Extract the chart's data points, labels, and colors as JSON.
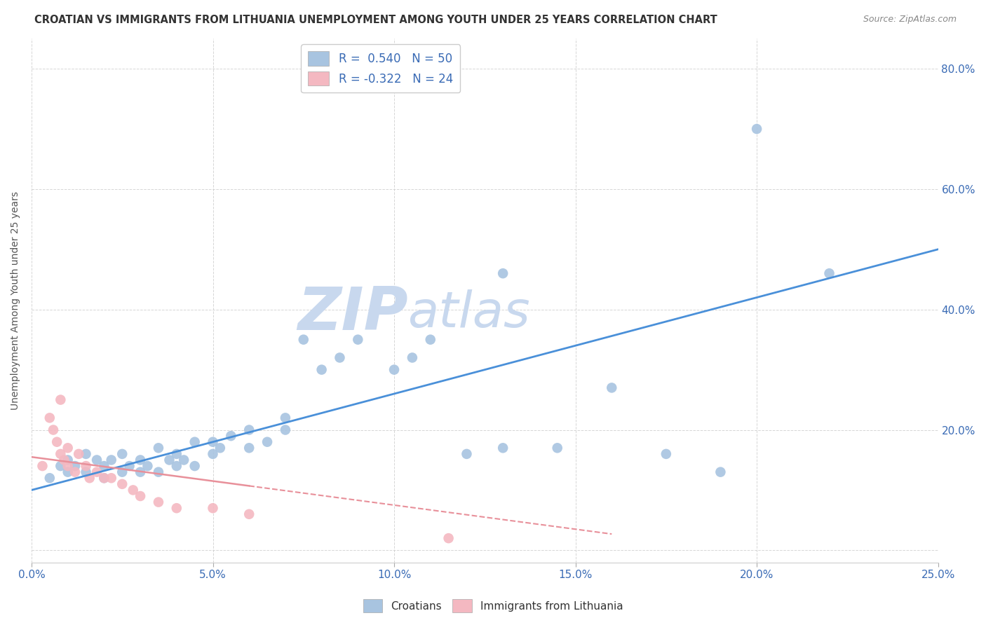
{
  "title": "CROATIAN VS IMMIGRANTS FROM LITHUANIA UNEMPLOYMENT AMONG YOUTH UNDER 25 YEARS CORRELATION CHART",
  "source": "Source: ZipAtlas.com",
  "xlabel": "",
  "ylabel": "Unemployment Among Youth under 25 years",
  "xlim": [
    0.0,
    0.25
  ],
  "ylim": [
    -0.02,
    0.85
  ],
  "xticks": [
    0.0,
    0.05,
    0.1,
    0.15,
    0.2,
    0.25
  ],
  "yticks": [
    0.0,
    0.2,
    0.4,
    0.6,
    0.8
  ],
  "ytick_labels": [
    "",
    "20.0%",
    "40.0%",
    "60.0%",
    "80.0%"
  ],
  "xtick_labels": [
    "0.0%",
    "5.0%",
    "10.0%",
    "15.0%",
    "20.0%",
    "25.0%"
  ],
  "r_croatian": 0.54,
  "n_croatian": 50,
  "r_lithuania": -0.322,
  "n_lithuania": 24,
  "croatian_color": "#a8c4e0",
  "lithuania_color": "#f4b8c1",
  "trend_blue": "#4a90d9",
  "trend_pink": "#e8909a",
  "watermark_zip": "ZIP",
  "watermark_atlas": "atlas",
  "watermark_color": "#c8d8ee",
  "legend_blue_label": "Croatians",
  "legend_pink_label": "Immigrants from Lithuania",
  "blue_line_x0": 0.0,
  "blue_line_y0": 0.1,
  "blue_line_x1": 0.25,
  "blue_line_y1": 0.5,
  "pink_line_x0": 0.0,
  "pink_line_y0": 0.155,
  "pink_line_x1": 0.125,
  "pink_line_y1": 0.055,
  "croatian_x": [
    0.005,
    0.008,
    0.01,
    0.01,
    0.012,
    0.015,
    0.015,
    0.018,
    0.02,
    0.02,
    0.022,
    0.025,
    0.025,
    0.027,
    0.03,
    0.03,
    0.032,
    0.035,
    0.035,
    0.038,
    0.04,
    0.04,
    0.042,
    0.045,
    0.045,
    0.05,
    0.05,
    0.052,
    0.055,
    0.06,
    0.06,
    0.065,
    0.07,
    0.07,
    0.075,
    0.08,
    0.085,
    0.09,
    0.1,
    0.105,
    0.11,
    0.12,
    0.13,
    0.145,
    0.16,
    0.175,
    0.19,
    0.2,
    0.22,
    0.13
  ],
  "croatian_y": [
    0.12,
    0.14,
    0.13,
    0.15,
    0.14,
    0.13,
    0.16,
    0.15,
    0.12,
    0.14,
    0.15,
    0.13,
    0.16,
    0.14,
    0.13,
    0.15,
    0.14,
    0.13,
    0.17,
    0.15,
    0.14,
    0.16,
    0.15,
    0.18,
    0.14,
    0.16,
    0.18,
    0.17,
    0.19,
    0.17,
    0.2,
    0.18,
    0.22,
    0.2,
    0.35,
    0.3,
    0.32,
    0.35,
    0.3,
    0.32,
    0.35,
    0.16,
    0.17,
    0.17,
    0.27,
    0.16,
    0.13,
    0.7,
    0.46,
    0.46
  ],
  "lithuania_x": [
    0.003,
    0.005,
    0.006,
    0.007,
    0.008,
    0.008,
    0.009,
    0.01,
    0.01,
    0.012,
    0.013,
    0.015,
    0.016,
    0.018,
    0.02,
    0.022,
    0.025,
    0.028,
    0.03,
    0.035,
    0.04,
    0.05,
    0.06,
    0.115
  ],
  "lithuania_y": [
    0.14,
    0.22,
    0.2,
    0.18,
    0.16,
    0.25,
    0.15,
    0.14,
    0.17,
    0.13,
    0.16,
    0.14,
    0.12,
    0.13,
    0.12,
    0.12,
    0.11,
    0.1,
    0.09,
    0.08,
    0.07,
    0.07,
    0.06,
    0.02
  ]
}
